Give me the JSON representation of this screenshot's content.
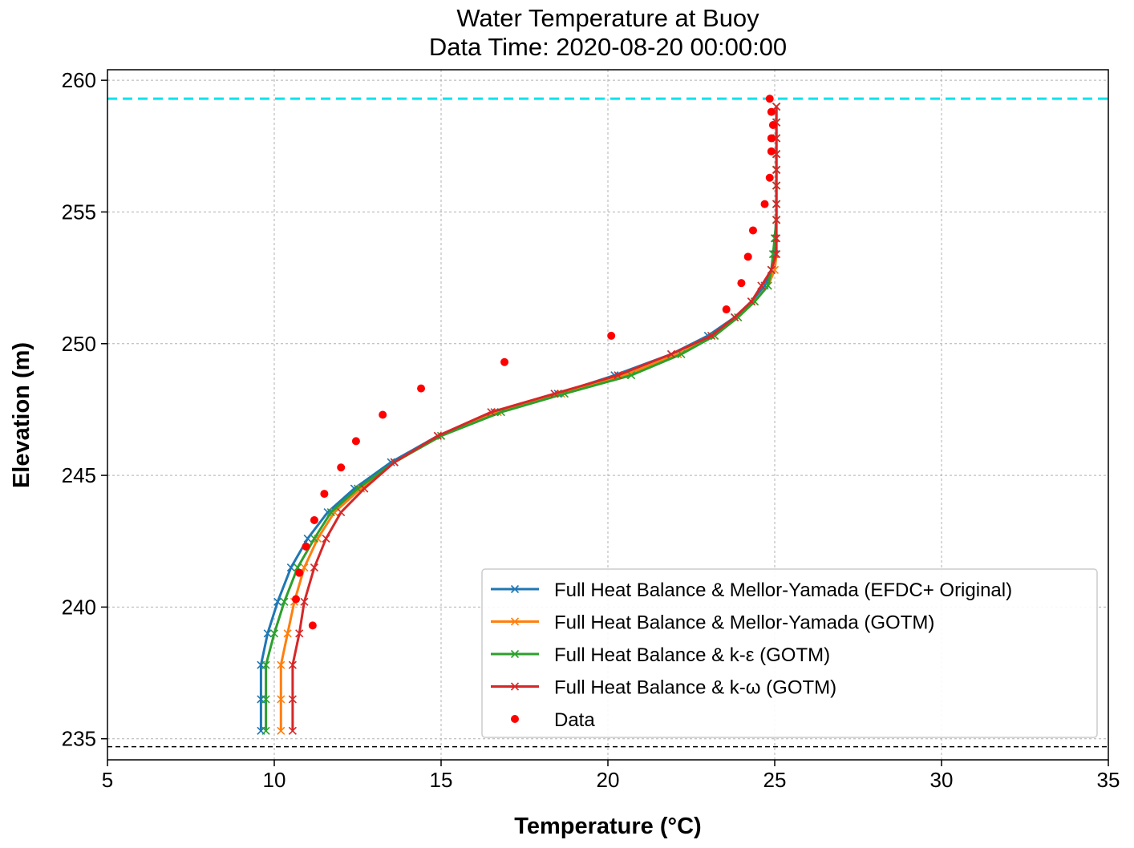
{
  "chart_data": {
    "type": "line",
    "title": "Water Temperature at Buoy",
    "subtitle": "Data Time: 2020-08-20 00:00:00",
    "xlabel": "Temperature (°C)",
    "ylabel": "Elevation (m)",
    "xlim": [
      5,
      35
    ],
    "ylim": [
      234.2,
      260.4
    ],
    "xticks": [
      5,
      10,
      15,
      20,
      25,
      30,
      35
    ],
    "yticks": [
      235,
      240,
      245,
      250,
      255,
      260
    ],
    "grid": true,
    "legend_position": "lower-right",
    "reference_lines": [
      {
        "name": "water-surface-line",
        "y": 259.3,
        "color": "#00e5ee",
        "style": "dashed"
      },
      {
        "name": "bottom-line",
        "y": 234.7,
        "color": "#000000",
        "style": "dashed"
      }
    ],
    "series": [
      {
        "name": "Full Heat Balance & Mellor-Yamada (EFDC+ Original)",
        "color": "#1f77b4",
        "marker": "x",
        "points": [
          [
            9.6,
            235.3
          ],
          [
            9.6,
            236.5
          ],
          [
            9.6,
            237.8
          ],
          [
            9.8,
            239.0
          ],
          [
            10.1,
            240.2
          ],
          [
            10.5,
            241.5
          ],
          [
            11.0,
            242.6
          ],
          [
            11.6,
            243.6
          ],
          [
            12.4,
            244.5
          ],
          [
            13.5,
            245.5
          ],
          [
            14.9,
            246.5
          ],
          [
            16.6,
            247.4
          ],
          [
            18.5,
            248.1
          ],
          [
            20.2,
            248.8
          ],
          [
            21.9,
            249.6
          ],
          [
            23.0,
            250.3
          ],
          [
            23.8,
            251.0
          ],
          [
            24.3,
            251.6
          ],
          [
            24.7,
            252.2
          ],
          [
            24.9,
            252.8
          ],
          [
            25.0,
            253.4
          ],
          [
            25.0,
            254.0
          ],
          [
            25.05,
            254.7
          ],
          [
            25.05,
            255.3
          ],
          [
            25.05,
            256.0
          ],
          [
            25.05,
            256.6
          ],
          [
            25.05,
            257.2
          ],
          [
            25.05,
            257.8
          ],
          [
            25.05,
            258.4
          ],
          [
            25.05,
            259.0
          ]
        ]
      },
      {
        "name": "Full Heat Balance & Mellor-Yamada (GOTM)",
        "color": "#ff7f0e",
        "marker": "x",
        "points": [
          [
            10.2,
            235.3
          ],
          [
            10.2,
            236.5
          ],
          [
            10.2,
            237.8
          ],
          [
            10.4,
            239.0
          ],
          [
            10.6,
            240.2
          ],
          [
            10.9,
            241.5
          ],
          [
            11.3,
            242.6
          ],
          [
            11.8,
            243.6
          ],
          [
            12.6,
            244.5
          ],
          [
            13.6,
            245.5
          ],
          [
            15.0,
            246.5
          ],
          [
            16.7,
            247.4
          ],
          [
            18.6,
            248.1
          ],
          [
            20.5,
            248.8
          ],
          [
            22.1,
            249.6
          ],
          [
            23.2,
            250.3
          ],
          [
            23.9,
            251.0
          ],
          [
            24.4,
            251.6
          ],
          [
            24.8,
            252.2
          ],
          [
            25.0,
            252.8
          ],
          [
            25.05,
            253.4
          ],
          [
            25.05,
            254.0
          ],
          [
            25.05,
            254.7
          ],
          [
            25.05,
            255.3
          ],
          [
            25.05,
            256.0
          ],
          [
            25.05,
            256.6
          ],
          [
            25.05,
            257.2
          ],
          [
            25.05,
            257.8
          ],
          [
            25.05,
            258.4
          ],
          [
            25.05,
            259.0
          ]
        ]
      },
      {
        "name": "Full Heat Balance & k-ε (GOTM)",
        "color": "#2ca02c",
        "marker": "x",
        "points": [
          [
            9.75,
            235.3
          ],
          [
            9.75,
            236.5
          ],
          [
            9.75,
            237.8
          ],
          [
            10.0,
            239.0
          ],
          [
            10.3,
            240.2
          ],
          [
            10.7,
            241.5
          ],
          [
            11.2,
            242.6
          ],
          [
            11.7,
            243.6
          ],
          [
            12.5,
            244.5
          ],
          [
            13.6,
            245.5
          ],
          [
            15.0,
            246.5
          ],
          [
            16.8,
            247.4
          ],
          [
            18.7,
            248.1
          ],
          [
            20.7,
            248.8
          ],
          [
            22.2,
            249.6
          ],
          [
            23.2,
            250.3
          ],
          [
            23.9,
            251.0
          ],
          [
            24.4,
            251.6
          ],
          [
            24.8,
            252.2
          ],
          [
            24.9,
            252.8
          ],
          [
            24.95,
            253.4
          ],
          [
            25.0,
            254.0
          ],
          [
            25.05,
            254.7
          ],
          [
            25.05,
            255.3
          ],
          [
            25.05,
            256.0
          ],
          [
            25.05,
            256.6
          ],
          [
            25.05,
            257.2
          ],
          [
            25.05,
            257.8
          ],
          [
            25.05,
            258.4
          ],
          [
            25.05,
            259.0
          ]
        ]
      },
      {
        "name": "Full Heat Balance & k-ω (GOTM)",
        "color": "#d62728",
        "marker": "x",
        "points": [
          [
            10.55,
            235.3
          ],
          [
            10.55,
            236.5
          ],
          [
            10.55,
            237.8
          ],
          [
            10.75,
            239.0
          ],
          [
            10.9,
            240.2
          ],
          [
            11.2,
            241.5
          ],
          [
            11.55,
            242.6
          ],
          [
            12.0,
            243.6
          ],
          [
            12.7,
            244.5
          ],
          [
            13.6,
            245.5
          ],
          [
            14.9,
            246.5
          ],
          [
            16.5,
            247.4
          ],
          [
            18.4,
            248.1
          ],
          [
            20.3,
            248.8
          ],
          [
            21.9,
            249.6
          ],
          [
            23.1,
            250.3
          ],
          [
            23.8,
            251.0
          ],
          [
            24.3,
            251.6
          ],
          [
            24.6,
            252.2
          ],
          [
            24.9,
            252.8
          ],
          [
            25.05,
            253.4
          ],
          [
            25.05,
            254.0
          ],
          [
            25.05,
            254.7
          ],
          [
            25.05,
            255.3
          ],
          [
            25.05,
            256.0
          ],
          [
            25.05,
            256.6
          ],
          [
            25.05,
            257.2
          ],
          [
            25.05,
            257.8
          ],
          [
            25.05,
            258.4
          ],
          [
            25.05,
            259.0
          ]
        ]
      },
      {
        "name": "Data",
        "color": "#ff0000",
        "marker": "o",
        "points": [
          [
            11.15,
            239.3
          ],
          [
            10.65,
            240.3
          ],
          [
            10.75,
            241.3
          ],
          [
            10.95,
            242.3
          ],
          [
            11.2,
            243.3
          ],
          [
            11.5,
            244.3
          ],
          [
            12.0,
            245.3
          ],
          [
            12.45,
            246.3
          ],
          [
            13.25,
            247.3
          ],
          [
            14.4,
            248.3
          ],
          [
            16.9,
            249.3
          ],
          [
            20.1,
            250.3
          ],
          [
            23.55,
            251.3
          ],
          [
            24.0,
            252.3
          ],
          [
            24.2,
            253.3
          ],
          [
            24.35,
            254.3
          ],
          [
            24.7,
            255.3
          ],
          [
            24.85,
            256.3
          ],
          [
            24.9,
            257.3
          ],
          [
            24.9,
            257.8
          ],
          [
            24.95,
            258.3
          ],
          [
            24.9,
            258.8
          ],
          [
            24.85,
            259.3
          ]
        ]
      }
    ]
  }
}
